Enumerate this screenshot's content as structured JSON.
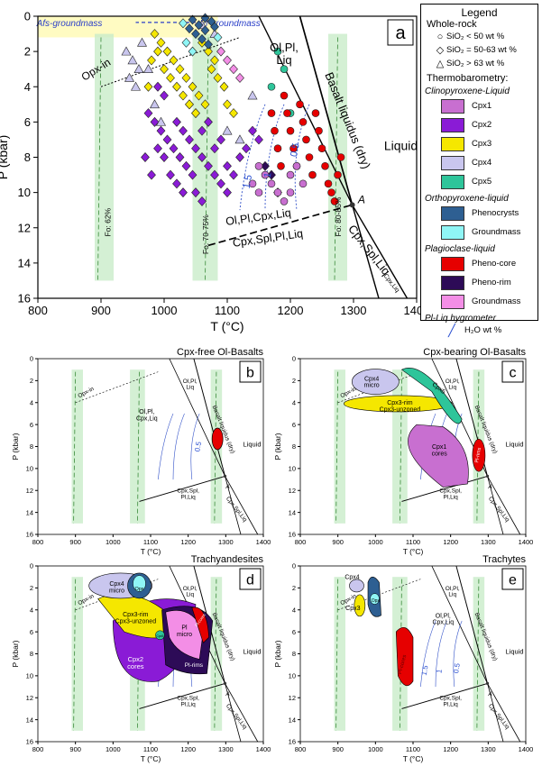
{
  "chart_data": [
    {
      "type": "scatter",
      "panel": "a",
      "xlabel": "T (°C)",
      "ylabel": "P (kbar)",
      "xlim": [
        800,
        1400
      ],
      "ylim": [
        16,
        0
      ],
      "xticks": [
        "800",
        "900",
        "1000",
        "1100",
        "1200",
        "1300",
        "1400"
      ],
      "yticks": [
        "0",
        "2",
        "4",
        "6",
        "8",
        "10",
        "12",
        "14",
        "16"
      ],
      "annotations": {
        "afs": "Afs-groundmass",
        "pl": "Pl-groundmass",
        "olplliq": [
          "Ol,Pl,",
          "Liq"
        ],
        "opxin": "Opx-in",
        "liquidus": "Basalt liquidus (dry)",
        "liquid": "Liquid",
        "cpxspl": "Cpx,Spl,Liq",
        "cpxliq": "Cpx,Liq",
        "olplcpx": "Ol,Pl,Cpx,Liq",
        "cpxsplpl": "Cpx,Spl,Pl,Liq",
        "pointA": "A",
        "fo62": "Fo: 62%",
        "fo7075": "Fo: 70-75%",
        "fo8085": "Fo: 80-85%",
        "h15": "1.5",
        "h1": "1",
        "h05": "0.5"
      },
      "series": [
        {
          "name": "Cpx2",
          "color": "#8a1bd6",
          "points": [
            [
              975,
              5.5
            ],
            [
              985,
              6
            ],
            [
              995,
              6.5
            ],
            [
              1005,
              7
            ],
            [
              1015,
              7.5
            ],
            [
              1025,
              8
            ],
            [
              1035,
              8.5
            ],
            [
              1045,
              9
            ],
            [
              1000,
              8
            ],
            [
              990,
              7.5
            ],
            [
              1020,
              6
            ],
            [
              1030,
              6.5
            ],
            [
              1040,
              7
            ],
            [
              1050,
              7.5
            ],
            [
              1060,
              8
            ],
            [
              1070,
              8.5
            ],
            [
              1080,
              9
            ],
            [
              1090,
              9.5
            ],
            [
              1100,
              10
            ],
            [
              1010,
              9
            ],
            [
              1020,
              9.5
            ],
            [
              1030,
              10
            ],
            [
              980,
              9
            ],
            [
              970,
              8
            ],
            [
              1050,
              10
            ],
            [
              1060,
              10.5
            ],
            [
              1110,
              9
            ],
            [
              1120,
              8
            ],
            [
              1130,
              7.5
            ],
            [
              1100,
              8.5
            ],
            [
              1090,
              7
            ],
            [
              1080,
              7.5
            ],
            [
              1070,
              6
            ],
            [
              1060,
              6.5
            ],
            [
              1050,
              5.5
            ],
            [
              1040,
              5
            ],
            [
              1000,
              4.5
            ],
            [
              990,
              4
            ],
            [
              1140,
              6.5
            ],
            [
              1150,
              7
            ]
          ]
        },
        {
          "name": "Cpx3",
          "color": "#f5e700",
          "points": [
            [
              985,
              1
            ],
            [
              995,
              1.5
            ],
            [
              1005,
              2
            ],
            [
              1015,
              2.5
            ],
            [
              1025,
              3
            ],
            [
              1035,
              3.5
            ],
            [
              1045,
              4
            ],
            [
              1055,
              4.5
            ],
            [
              1065,
              5
            ],
            [
              1000,
              3
            ],
            [
              1010,
              3.5
            ],
            [
              1020,
              4
            ],
            [
              1030,
              4.5
            ],
            [
              1040,
              5
            ],
            [
              1050,
              5.5
            ],
            [
              1075,
              3
            ],
            [
              1085,
              3.5
            ],
            [
              1095,
              4
            ],
            [
              1070,
              2
            ],
            [
              1080,
              2.5
            ],
            [
              990,
              2
            ],
            [
              980,
              2.5
            ],
            [
              1100,
              5
            ],
            [
              1110,
              5.5
            ],
            [
              975,
              4
            ],
            [
              1060,
              1.5
            ]
          ]
        },
        {
          "name": "Cpx4",
          "color": "#c9c6ee",
          "points": [
            [
              940,
              2
            ],
            [
              950,
              2.5
            ],
            [
              960,
              3
            ],
            [
              945,
              3.5
            ],
            [
              955,
              4
            ],
            [
              965,
              1.5
            ],
            [
              975,
              3
            ],
            [
              985,
              5
            ],
            [
              995,
              6
            ],
            [
              1100,
              6.5
            ],
            [
              1120,
              7
            ],
            [
              1140,
              4.5
            ],
            [
              1060,
              0.5
            ],
            [
              1080,
              1
            ]
          ]
        },
        {
          "name": "Cpx5",
          "color": "#2ec59a",
          "points": [
            [
              1180,
              2
            ],
            [
              1190,
              3
            ],
            [
              1170,
              4
            ],
            [
              1200,
              5.5
            ]
          ]
        },
        {
          "name": "Phenocrysts",
          "color": "#2e5f92",
          "points": [
            [
              1045,
              0.2
            ],
            [
              1055,
              0.5
            ],
            [
              1065,
              0.8
            ],
            [
              1075,
              0.3
            ],
            [
              1050,
              1
            ],
            [
              1060,
              1.3
            ],
            [
              1070,
              1.6
            ],
            [
              1080,
              0.6
            ],
            [
              1040,
              0.7
            ],
            [
              1065,
              0.1
            ]
          ]
        },
        {
          "name": "Groundmass",
          "color": "#8ff5f5",
          "points": [
            [
              1035,
              1.5
            ],
            [
              1045,
              2
            ],
            [
              1085,
              1.2
            ],
            [
              1030,
              0.4
            ]
          ]
        },
        {
          "name": "Pheno-core",
          "color": "#e60000",
          "points": [
            [
              1190,
              4.5
            ],
            [
              1195,
              5.5
            ],
            [
              1200,
              6.5
            ],
            [
              1205,
              7.5
            ],
            [
              1210,
              8.5
            ],
            [
              1215,
              5
            ],
            [
              1220,
              6
            ],
            [
              1225,
              7
            ],
            [
              1230,
              8
            ],
            [
              1235,
              9
            ],
            [
              1240,
              5.5
            ],
            [
              1245,
              6.5
            ],
            [
              1250,
              7.5
            ],
            [
              1255,
              8.5
            ],
            [
              1260,
              9.5
            ],
            [
              1265,
              10
            ],
            [
              1270,
              10.5
            ],
            [
              1275,
              9
            ],
            [
              1280,
              8
            ],
            [
              1170,
              5.5
            ],
            [
              1175,
              6.5
            ],
            [
              1180,
              7.5
            ],
            [
              1185,
              8.5
            ]
          ]
        },
        {
          "name": "Pheno-rim",
          "color": "#2d0b57",
          "points": [
            [
              1170,
              9
            ],
            [
              1180,
              10
            ],
            [
              1160,
              8.5
            ]
          ]
        },
        {
          "name": "Groundmass-pl",
          "color": "#f38ee6",
          "points": [
            [
              1100,
              2.5
            ],
            [
              1110,
              3
            ],
            [
              1120,
              3.5
            ],
            [
              1090,
              2
            ]
          ]
        },
        {
          "name": "Cpx1",
          "color": "#c86fd0",
          "points": [
            [
              1150,
              8.5
            ],
            [
              1160,
              9
            ],
            [
              1170,
              9.5
            ],
            [
              1180,
              10
            ],
            [
              1190,
              10.5
            ],
            [
              1200,
              9
            ],
            [
              1210,
              8.5
            ],
            [
              1140,
              9.5
            ],
            [
              1150,
              10
            ],
            [
              1200,
              10
            ],
            [
              1220,
              9.5
            ]
          ]
        }
      ]
    },
    {
      "type": "area",
      "panel": "b",
      "title": "Cpx-free Ol-Basalts",
      "fields": [
        {
          "name": "Pl",
          "color": "#e60000"
        }
      ],
      "labels": {
        "opxin": "Opx-in",
        "olplliq": [
          "Ol,Pl,",
          "Liq"
        ],
        "olplcpx": [
          "Ol,Pl,",
          "Cpx,Liq"
        ],
        "liq": "Basalt liquidus (dry)",
        "liquid": "Liquid",
        "h05": "0.5",
        "fo": "Fo: 80-85%",
        "cpxspl": "Cpx,Spl,Liq",
        "cpxliq": "Cpx,Liq",
        "pl": [
          "Cpx,Spl,",
          "Pl,Liq"
        ],
        "a": "A"
      }
    },
    {
      "type": "area",
      "panel": "c",
      "title": "Cpx-bearing Ol-Basalts",
      "fields": [
        {
          "name": "Cpx4 micro",
          "color": "#c9c6ee"
        },
        {
          "name": "Cpx5",
          "color": "#2ec59a"
        },
        {
          "name": "Cpx3-rim Cpx3-unzoned",
          "color": "#f5e700"
        },
        {
          "name": "Cpx1 cores",
          "color": "#c86fd0"
        },
        {
          "name": "Pl-rims",
          "color": "#e60000"
        }
      ],
      "labels": {
        "cpx4": [
          "Cpx4",
          "micro"
        ],
        "cpx5": "Cpx5",
        "cpx3": [
          "Cpx3-rim",
          "Cpx3-unzoned"
        ],
        "cpx1": [
          "Cpx1",
          "cores"
        ],
        "plrims": "Pl-rims"
      }
    },
    {
      "type": "area",
      "panel": "d",
      "title": "Trachyandesites",
      "fields": [
        {
          "name": "Cpx4 micro",
          "color": "#c9c6ee"
        },
        {
          "name": "Opx",
          "color": "#2e5f92"
        },
        {
          "name": "Cpx3-rim Cpx3-unzoned",
          "color": "#f5e700"
        },
        {
          "name": "Cpx2 cores",
          "color": "#8a1bd6"
        },
        {
          "name": "Pl micro",
          "color": "#f38ee6"
        },
        {
          "name": "Pl-rims",
          "color": "#2d0b57"
        },
        {
          "name": "Pl-cores",
          "color": "#e60000"
        }
      ],
      "labels": {
        "cpx4": [
          "Cpx4",
          "micro"
        ],
        "opx": "Opx",
        "cpx3": [
          "Cpx3-rim",
          "Cpx3-unzoned"
        ],
        "cpx2": [
          "Cpx2",
          "cores"
        ],
        "plmicro": [
          "Pl",
          "micro"
        ],
        "plrims": "Pl-rims",
        "plcores": "Pl-cores",
        "cpx5": "Cpx5"
      }
    },
    {
      "type": "area",
      "panel": "e",
      "title": "Trachytes",
      "fields": [
        {
          "name": "Cpx4",
          "color": "#c9c6ee"
        },
        {
          "name": "Cpx3",
          "color": "#f5e700"
        },
        {
          "name": "Opx",
          "color": "#2e5f92"
        },
        {
          "name": "Pl-cores",
          "color": "#e60000"
        }
      ],
      "labels": {
        "cpx4": "Cpx4",
        "cpx3": "Cpx3",
        "opx": "Opx",
        "plcores": "Pl-cores",
        "h15": "1.5",
        "h1": "1",
        "h05": "0.5"
      }
    }
  ],
  "legend": {
    "title": "Legend",
    "wholerock": "Whole-rock",
    "wr": [
      {
        "sym": "○",
        "label": "SiO₂ < 50 wt %"
      },
      {
        "sym": "◇",
        "label": "SiO₂ = 50-63 wt %"
      },
      {
        "sym": "△",
        "label": "SiO₂ > 63 wt %"
      }
    ],
    "thermo": "Thermobarometry:",
    "cpxliq": "Clinopyroxene-Liquid",
    "cpx": [
      {
        "label": "Cpx1",
        "color": "#c86fd0"
      },
      {
        "label": "Cpx2",
        "color": "#8a1bd6"
      },
      {
        "label": "Cpx3",
        "color": "#f5e700"
      },
      {
        "label": "Cpx4",
        "color": "#c9c6ee"
      },
      {
        "label": "Cpx5",
        "color": "#2ec59a"
      }
    ],
    "opxliq": "Orthopyroxene-liquid",
    "opx": [
      {
        "label": "Phenocrysts",
        "color": "#2e5f92"
      },
      {
        "label": "Groundmass",
        "color": "#8ff5f5"
      }
    ],
    "plagliq": "Plagioclase-liquid",
    "pl": [
      {
        "label": "Pheno-core",
        "color": "#e60000"
      },
      {
        "label": "Pheno-rim",
        "color": "#2d0b57"
      },
      {
        "label": "Groundmass",
        "color": "#f38ee6"
      }
    ],
    "hyg": "Pl-Liq hygrometer",
    "h2o": "H₂O wt %"
  }
}
